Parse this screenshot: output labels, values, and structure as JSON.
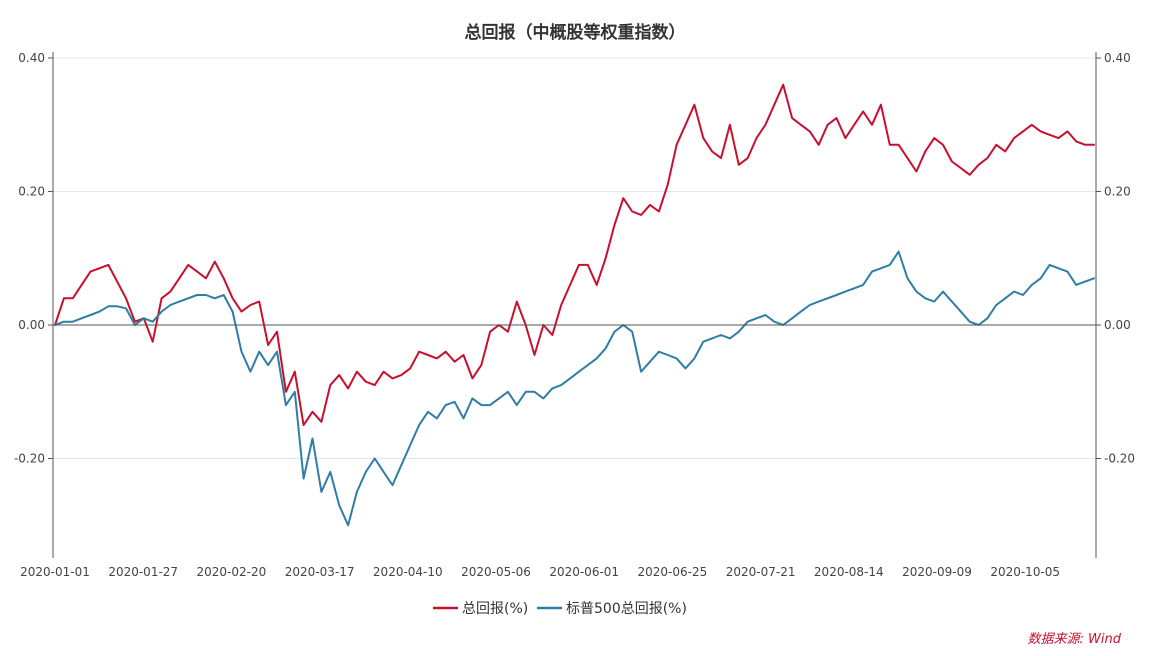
{
  "chart_data": {
    "type": "line",
    "title": "总回报（中概股等权重指数）",
    "source": "数据来源: Wind",
    "ylim": [
      -0.35,
      0.4
    ],
    "yticks": [
      0.4,
      0.2,
      0.0,
      -0.2
    ],
    "ytick_labels": [
      "0.40",
      "0.20",
      "0.00",
      "-0.20"
    ],
    "xtick_labels": [
      "2020-01-01",
      "2020-01-27",
      "2020-02-20",
      "2020-03-17",
      "2020-04-10",
      "2020-05-06",
      "2020-06-01",
      "2020-06-25",
      "2020-07-21",
      "2020-08-14",
      "2020-09-09",
      "2020-10-05"
    ],
    "legend_position": "bottom",
    "grid": true,
    "series": [
      {
        "name": "总回报(%)",
        "color": "#c8102e",
        "values": [
          0.0,
          0.04,
          0.04,
          0.06,
          0.08,
          0.085,
          0.09,
          0.065,
          0.04,
          0.005,
          0.01,
          -0.025,
          0.04,
          0.05,
          0.07,
          0.09,
          0.08,
          0.07,
          0.095,
          0.07,
          0.04,
          0.02,
          0.03,
          0.035,
          -0.03,
          -0.01,
          -0.1,
          -0.07,
          -0.15,
          -0.13,
          -0.145,
          -0.09,
          -0.075,
          -0.095,
          -0.07,
          -0.085,
          -0.09,
          -0.07,
          -0.08,
          -0.075,
          -0.065,
          -0.04,
          -0.045,
          -0.05,
          -0.04,
          -0.055,
          -0.045,
          -0.08,
          -0.06,
          -0.01,
          0.0,
          -0.01,
          0.035,
          0.0,
          -0.045,
          0.0,
          -0.015,
          0.03,
          0.06,
          0.09,
          0.09,
          0.06,
          0.1,
          0.15,
          0.19,
          0.17,
          0.165,
          0.18,
          0.17,
          0.21,
          0.27,
          0.3,
          0.33,
          0.28,
          0.26,
          0.25,
          0.3,
          0.24,
          0.25,
          0.28,
          0.3,
          0.33,
          0.36,
          0.31,
          0.3,
          0.29,
          0.27,
          0.3,
          0.31,
          0.28,
          0.3,
          0.32,
          0.3,
          0.33,
          0.27,
          0.27,
          0.25,
          0.23,
          0.26,
          0.28,
          0.27,
          0.245,
          0.235,
          0.225,
          0.24,
          0.25,
          0.27,
          0.26,
          0.28,
          0.29,
          0.3,
          0.29,
          0.285,
          0.28,
          0.29,
          0.275,
          0.27,
          0.27
        ]
      },
      {
        "name": "标普500总回报(%)",
        "color": "#2e7ea6",
        "values": [
          0.0,
          0.005,
          0.005,
          0.01,
          0.015,
          0.02,
          0.028,
          0.028,
          0.025,
          0.0,
          0.01,
          0.005,
          0.02,
          0.03,
          0.035,
          0.04,
          0.045,
          0.045,
          0.04,
          0.045,
          0.02,
          -0.04,
          -0.07,
          -0.04,
          -0.06,
          -0.04,
          -0.12,
          -0.1,
          -0.23,
          -0.17,
          -0.25,
          -0.22,
          -0.27,
          -0.3,
          -0.25,
          -0.22,
          -0.2,
          -0.22,
          -0.24,
          -0.21,
          -0.18,
          -0.15,
          -0.13,
          -0.14,
          -0.12,
          -0.115,
          -0.14,
          -0.11,
          -0.12,
          -0.12,
          -0.11,
          -0.1,
          -0.12,
          -0.1,
          -0.1,
          -0.11,
          -0.095,
          -0.09,
          -0.08,
          -0.07,
          -0.06,
          -0.05,
          -0.035,
          -0.01,
          0.0,
          -0.01,
          -0.07,
          -0.055,
          -0.04,
          -0.045,
          -0.05,
          -0.065,
          -0.05,
          -0.025,
          -0.02,
          -0.015,
          -0.02,
          -0.01,
          0.005,
          0.01,
          0.015,
          0.005,
          0.0,
          0.01,
          0.02,
          0.03,
          0.035,
          0.04,
          0.045,
          0.05,
          0.055,
          0.06,
          0.08,
          0.085,
          0.09,
          0.11,
          0.07,
          0.05,
          0.04,
          0.035,
          0.05,
          0.035,
          0.02,
          0.005,
          0.0,
          0.01,
          0.03,
          0.04,
          0.05,
          0.045,
          0.06,
          0.07,
          0.09,
          0.085,
          0.08,
          0.06,
          0.065,
          0.07
        ]
      }
    ]
  }
}
